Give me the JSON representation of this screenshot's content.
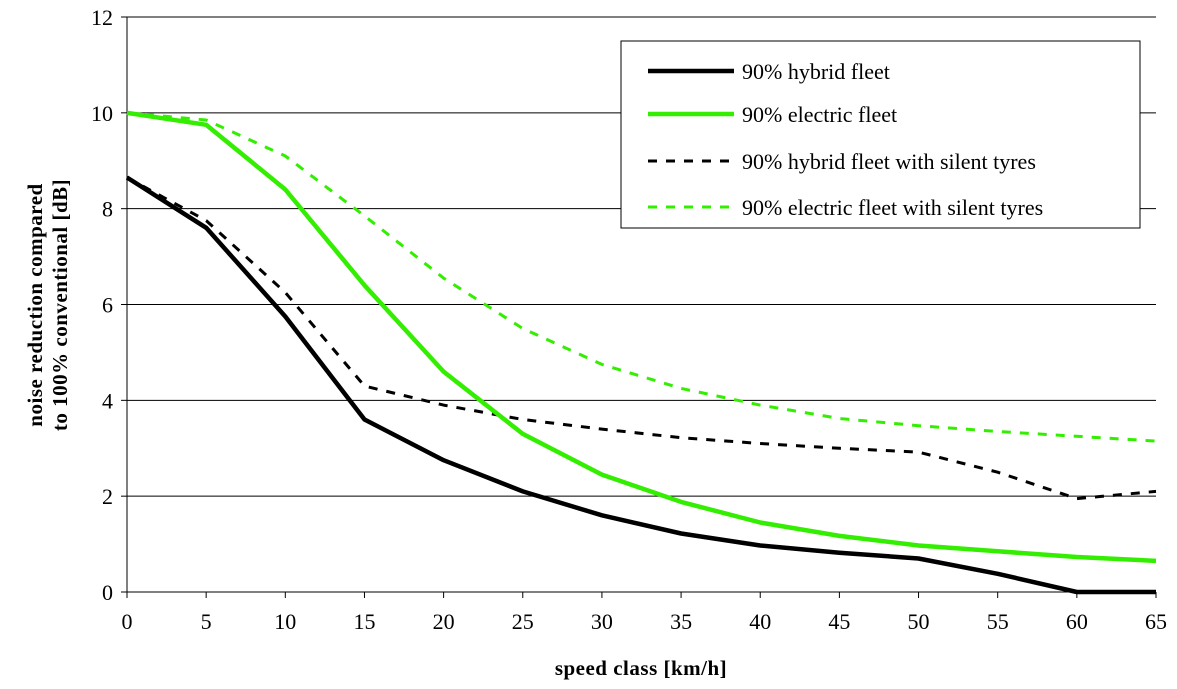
{
  "chart_data": {
    "type": "line",
    "xlabel": "speed class [km/h]",
    "ylabel_lines": [
      "noise reduction compared",
      "to 100% conventional [dB]"
    ],
    "xlim": [
      0,
      65
    ],
    "ylim": [
      0,
      12
    ],
    "x_ticks": [
      0,
      5,
      10,
      15,
      20,
      25,
      30,
      35,
      40,
      45,
      50,
      55,
      60,
      65
    ],
    "y_ticks": [
      0,
      2,
      4,
      6,
      8,
      10,
      12
    ],
    "grid": "horizontal",
    "legend_position": "top-right",
    "x": [
      0,
      5,
      10,
      15,
      20,
      25,
      30,
      35,
      40,
      45,
      50,
      55,
      60,
      65
    ],
    "series": [
      {
        "name": "90% hybrid fleet",
        "color": "#000000",
        "style": "solid",
        "values": [
          8.65,
          7.6,
          5.75,
          3.6,
          2.75,
          2.1,
          1.6,
          1.22,
          0.97,
          0.82,
          0.7,
          0.38,
          0.0,
          0.0
        ]
      },
      {
        "name": "90% electric fleet",
        "color": "#33ee00",
        "style": "solid",
        "values": [
          10.0,
          9.75,
          8.4,
          6.4,
          4.6,
          3.3,
          2.45,
          1.88,
          1.45,
          1.17,
          0.97,
          0.85,
          0.73,
          0.65
        ]
      },
      {
        "name": "90% hybrid fleet with silent tyres",
        "color": "#000000",
        "style": "dashed",
        "values": [
          8.65,
          7.75,
          6.25,
          4.3,
          3.9,
          3.6,
          3.4,
          3.22,
          3.1,
          3.0,
          2.92,
          2.5,
          1.95,
          2.1
        ]
      },
      {
        "name": "90% electric fleet with silent tyres",
        "color": "#33ee00",
        "style": "dashed",
        "values": [
          10.0,
          9.85,
          9.1,
          7.85,
          6.55,
          5.5,
          4.75,
          4.25,
          3.9,
          3.62,
          3.47,
          3.35,
          3.25,
          3.15
        ]
      }
    ]
  }
}
